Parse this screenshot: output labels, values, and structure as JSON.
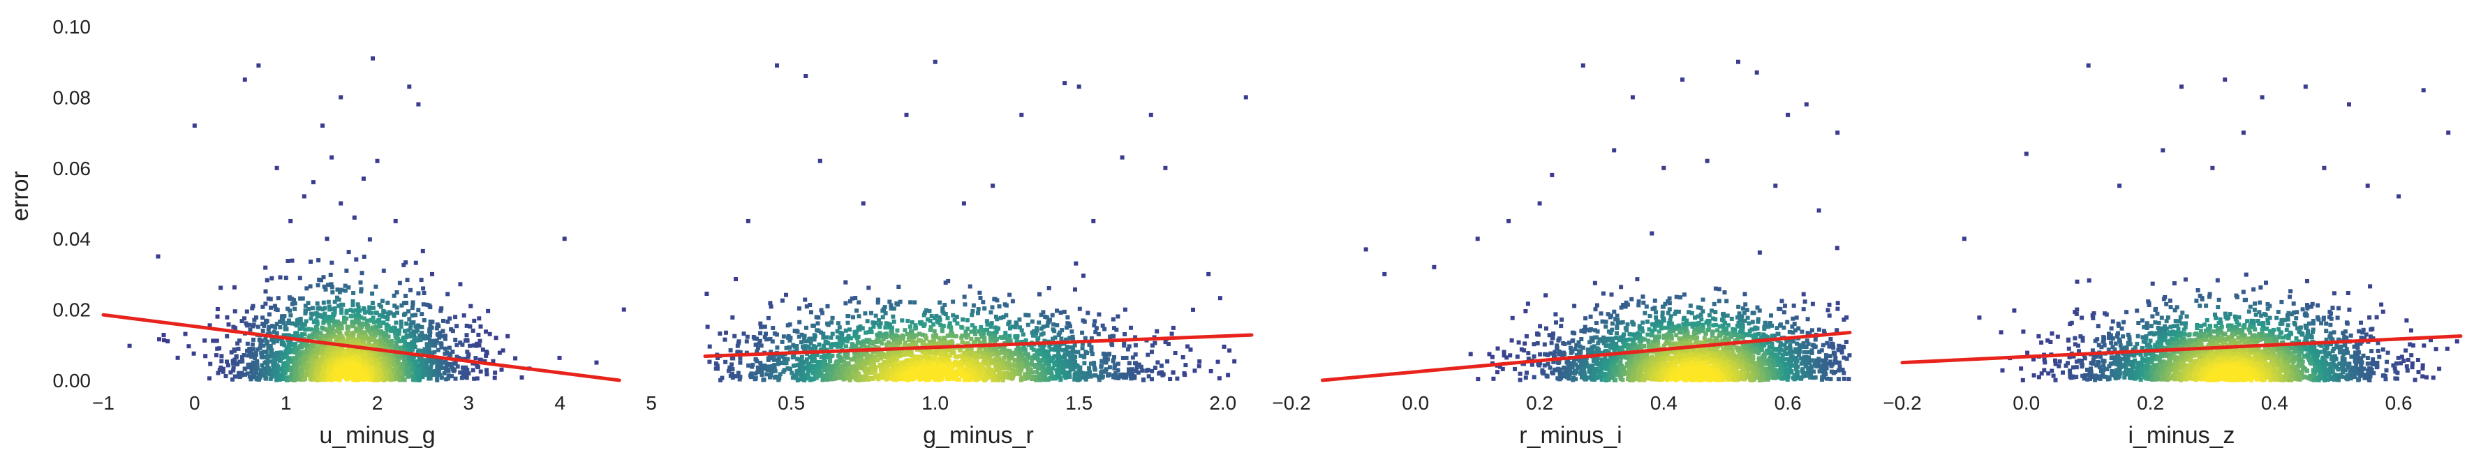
{
  "colors": {
    "density_low": "#3b3b8f",
    "density_mid": "#2a9a8a",
    "density_high": "#fde725",
    "fit_line": "#e8231c",
    "axis_text": "#222222"
  },
  "chart_data": [
    {
      "type": "scatter",
      "xlabel": "u_minus_g",
      "ylabel": "error",
      "xlim": [
        -1,
        5
      ],
      "ylim": [
        0,
        0.1
      ],
      "xticks": [
        "−1",
        "0",
        "1",
        "2",
        "3",
        "4",
        "5"
      ],
      "yticks": [
        "0.00",
        "0.02",
        "0.04",
        "0.06",
        "0.08",
        "0.10"
      ],
      "fit_line": {
        "x": [
          -1,
          4.65
        ],
        "y": [
          0.0185,
          0.0
        ]
      },
      "density_core": {
        "x_center": 1.7,
        "x_spread": 0.6,
        "y_center": 0.008,
        "y_spread": 0.007
      },
      "points_x": [
        0.55,
        0.7,
        1.6,
        1.95,
        2.35,
        2.45,
        1.4,
        1.5,
        2.0,
        1.3,
        1.85,
        1.2,
        1.6,
        1.75,
        2.2,
        0.0,
        -0.4,
        0.25,
        4.05,
        4.7,
        4.4,
        3.3,
        0.9,
        1.05,
        1.45,
        2.6
      ],
      "points_y": [
        0.085,
        0.089,
        0.08,
        0.091,
        0.083,
        0.078,
        0.072,
        0.063,
        0.062,
        0.056,
        0.057,
        0.052,
        0.05,
        0.046,
        0.045,
        0.072,
        0.035,
        0.018,
        0.04,
        0.02,
        0.005,
        0.012,
        0.06,
        0.045,
        0.04,
        0.03
      ]
    },
    {
      "type": "scatter",
      "xlabel": "g_minus_r",
      "ylabel": "",
      "xlim": [
        0.2,
        2.1
      ],
      "ylim": [
        0,
        0.1
      ],
      "xticks": [
        "0.5",
        "1.0",
        "1.5",
        "2.0"
      ],
      "yticks": [],
      "fit_line": {
        "x": [
          0.2,
          2.1
        ],
        "y": [
          0.0068,
          0.0128
        ]
      },
      "density_core": {
        "x_center": 1.0,
        "x_spread": 0.35,
        "y_center": 0.008,
        "y_spread": 0.006
      },
      "points_x": [
        0.45,
        0.55,
        1.0,
        1.45,
        1.5,
        1.3,
        1.75,
        2.08,
        0.9,
        0.6,
        1.65,
        1.8,
        0.35,
        1.1,
        1.2,
        0.75,
        1.95,
        1.55
      ],
      "points_y": [
        0.089,
        0.086,
        0.09,
        0.084,
        0.083,
        0.075,
        0.075,
        0.08,
        0.075,
        0.062,
        0.063,
        0.06,
        0.045,
        0.05,
        0.055,
        0.05,
        0.03,
        0.045
      ]
    },
    {
      "type": "scatter",
      "xlabel": "r_minus_i",
      "ylabel": "",
      "xlim": [
        -0.2,
        0.7
      ],
      "ylim": [
        0,
        0.1
      ],
      "xticks": [
        "−0.2",
        "0.0",
        "0.2",
        "0.4",
        "0.6"
      ],
      "yticks": [],
      "fit_line": {
        "x": [
          -0.15,
          0.7
        ],
        "y": [
          0.0,
          0.0135
        ]
      },
      "density_core": {
        "x_center": 0.45,
        "x_spread": 0.12,
        "y_center": 0.007,
        "y_spread": 0.006
      },
      "points_x": [
        0.27,
        0.35,
        0.52,
        0.55,
        0.43,
        0.6,
        0.63,
        0.68,
        0.32,
        0.4,
        0.47,
        0.22,
        0.15,
        0.1,
        -0.08,
        -0.05,
        0.03,
        0.58,
        0.65,
        0.2
      ],
      "points_y": [
        0.089,
        0.08,
        0.09,
        0.087,
        0.085,
        0.075,
        0.078,
        0.07,
        0.065,
        0.06,
        0.062,
        0.058,
        0.045,
        0.04,
        0.037,
        0.03,
        0.032,
        0.055,
        0.048,
        0.05
      ]
    },
    {
      "type": "scatter",
      "xlabel": "i_minus_z",
      "ylabel": "",
      "xlim": [
        -0.2,
        0.7
      ],
      "ylim": [
        0,
        0.1
      ],
      "xticks": [
        "−0.2",
        "0.0",
        "0.2",
        "0.4",
        "0.6"
      ],
      "yticks": [],
      "fit_line": {
        "x": [
          -0.2,
          0.7
        ],
        "y": [
          0.005,
          0.0125
        ]
      },
      "density_core": {
        "x_center": 0.33,
        "x_spread": 0.12,
        "y_center": 0.007,
        "y_spread": 0.006
      },
      "points_x": [
        0.1,
        0.25,
        0.32,
        0.38,
        0.45,
        0.52,
        0.64,
        0.68,
        0.0,
        0.22,
        0.3,
        0.55,
        0.6,
        0.15,
        -0.1,
        0.48,
        0.35
      ],
      "points_y": [
        0.089,
        0.083,
        0.085,
        0.08,
        0.083,
        0.078,
        0.082,
        0.07,
        0.064,
        0.065,
        0.06,
        0.055,
        0.052,
        0.055,
        0.04,
        0.06,
        0.07
      ]
    }
  ]
}
